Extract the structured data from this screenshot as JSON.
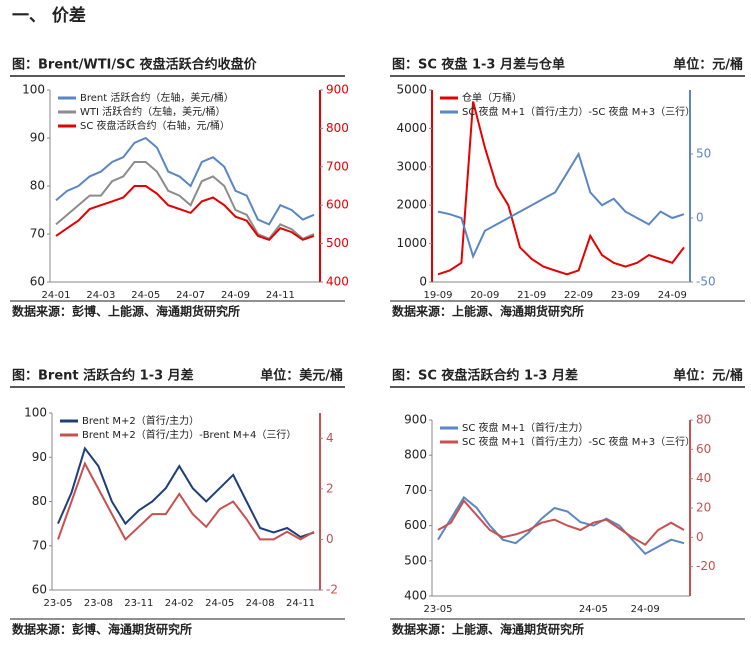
{
  "heading": "一、 价差",
  "chart_data": [
    {
      "type": "line",
      "title": "图：Brent/WTI/SC 夜盘活跃合约收盘价",
      "source": "数据来源：彭博、上能源、海通期货研究所",
      "categories": [
        "24-01",
        null,
        null,
        null,
        "24-03",
        null,
        null,
        null,
        "24-05",
        null,
        null,
        null,
        "24-07",
        null,
        null,
        null,
        "24-09",
        null,
        null,
        null,
        "24-11",
        null,
        null,
        null
      ],
      "ylim": [
        60,
        100
      ],
      "yticks": [
        60,
        70,
        80,
        90,
        100
      ],
      "y2lim": [
        400,
        900
      ],
      "y2ticks": [
        400,
        500,
        600,
        700,
        800,
        900
      ],
      "series": [
        {
          "name": "Brent 活跃合约（左轴，美元/桶）",
          "color": "#5b86c5",
          "values": [
            77,
            79,
            80,
            82,
            83,
            85,
            86,
            89,
            90,
            88,
            83,
            82,
            80,
            85,
            86,
            84,
            79,
            78,
            73,
            72,
            76,
            75,
            73,
            74
          ]
        },
        {
          "name": "WTI 活跃合约（左轴，美元/桶）",
          "color": "#8c8c8c",
          "values": [
            72,
            74,
            76,
            78,
            78,
            81,
            82,
            85,
            85,
            83,
            79,
            78,
            76,
            81,
            82,
            80,
            75,
            74,
            70,
            69,
            72,
            71,
            69,
            70
          ]
        },
        {
          "name": "SC 夜盘活跃合约（右轴，元/桶）",
          "color": "#e60000",
          "axis": "y2",
          "values": [
            520,
            540,
            560,
            590,
            600,
            610,
            620,
            650,
            650,
            630,
            600,
            590,
            580,
            610,
            620,
            600,
            570,
            560,
            520,
            510,
            540,
            530,
            510,
            520
          ]
        }
      ]
    },
    {
      "type": "line",
      "title": "图：SC 夜盘 1-3 月差与仓单",
      "unit": "单位：元/桶",
      "source": "数据来源：上能源、海通期货研究所",
      "categories": [
        "19-09",
        null,
        null,
        null,
        "20-09",
        null,
        null,
        null,
        "21-09",
        null,
        null,
        null,
        "22-09",
        null,
        null,
        null,
        "23-09",
        null,
        null,
        null,
        "24-09",
        null
      ],
      "ylim": [
        0,
        5000
      ],
      "yticks": [
        0,
        1000,
        2000,
        3000,
        4000,
        5000
      ],
      "y2lim": [
        -50,
        100
      ],
      "y2ticks": [
        -50,
        0,
        50
      ],
      "series": [
        {
          "name": "仓单（万桶）",
          "color": "#e60000",
          "values": [
            200,
            300,
            500,
            4700,
            3500,
            2500,
            2000,
            900,
            600,
            400,
            300,
            200,
            300,
            1200,
            700,
            500,
            400,
            500,
            700,
            600,
            500,
            900
          ]
        },
        {
          "name": "SC 夜盘 M+1（首行/主力）-SC 夜盘 M+3（三行）",
          "color": "#5b86c5",
          "axis": "y2",
          "values": [
            5,
            3,
            0,
            -30,
            -10,
            -5,
            0,
            5,
            10,
            15,
            20,
            35,
            50,
            20,
            10,
            15,
            5,
            0,
            -5,
            5,
            0,
            3
          ]
        }
      ]
    },
    {
      "type": "line",
      "title": "图：Brent 活跃合约 1-3 月差",
      "unit": "单位：美元/桶",
      "source": "数据来源：彭博、海通期货研究所",
      "categories": [
        "23-05",
        null,
        null,
        "23-08",
        null,
        null,
        "23-11",
        null,
        null,
        "24-02",
        null,
        null,
        "24-05",
        null,
        null,
        "24-08",
        null,
        null,
        "24-11",
        null
      ],
      "ylim": [
        60,
        100
      ],
      "yticks": [
        60,
        70,
        80,
        90,
        100
      ],
      "y2lim": [
        -2,
        5
      ],
      "y2ticks": [
        -2,
        0,
        2,
        4
      ],
      "series": [
        {
          "name": "Brent M+2（首行/主力）",
          "color": "#1f3f7a",
          "values": [
            75,
            82,
            92,
            88,
            80,
            75,
            78,
            80,
            83,
            88,
            83,
            80,
            83,
            86,
            80,
            74,
            73,
            74,
            72,
            73
          ]
        },
        {
          "name": "Brent M+2（首行/主力）-Brent M+4（三行）",
          "color": "#c8504f",
          "axis": "y2",
          "values": [
            0,
            1.5,
            3,
            2,
            1,
            0,
            0.5,
            1,
            1,
            1.8,
            1,
            0.5,
            1.2,
            1.5,
            0.8,
            0,
            0,
            0.3,
            0,
            0.3
          ]
        }
      ]
    },
    {
      "type": "line",
      "title": "图：SC 夜盘活跃合约 1-3 月差",
      "unit": "单位：元/桶",
      "source": "数据来源：上能源、海通期货研究所",
      "categories": [
        "23-05",
        null,
        null,
        null,
        null,
        null,
        null,
        null,
        null,
        null,
        null,
        null,
        "24-05",
        null,
        null,
        null,
        "24-09",
        null,
        null,
        null
      ],
      "ylim": [
        400,
        900
      ],
      "yticks": [
        400,
        500,
        600,
        700,
        800,
        900
      ],
      "y2lim": [
        -40,
        80
      ],
      "y2ticks": [
        -20,
        0,
        20,
        40,
        60,
        80
      ],
      "series": [
        {
          "name": "SC 夜盘 M+1（首行/主力）",
          "color": "#5b86c5",
          "values": [
            560,
            620,
            680,
            650,
            600,
            560,
            550,
            580,
            620,
            650,
            640,
            610,
            600,
            620,
            600,
            560,
            520,
            540,
            560,
            550
          ]
        },
        {
          "name": "SC 夜盘 M+1（首行/主力）-SC 夜盘 M+3（三行）",
          "color": "#c8504f",
          "axis": "y2",
          "values": [
            5,
            10,
            25,
            15,
            5,
            0,
            2,
            5,
            10,
            12,
            8,
            5,
            10,
            12,
            6,
            0,
            -5,
            5,
            10,
            5
          ]
        }
      ]
    }
  ]
}
